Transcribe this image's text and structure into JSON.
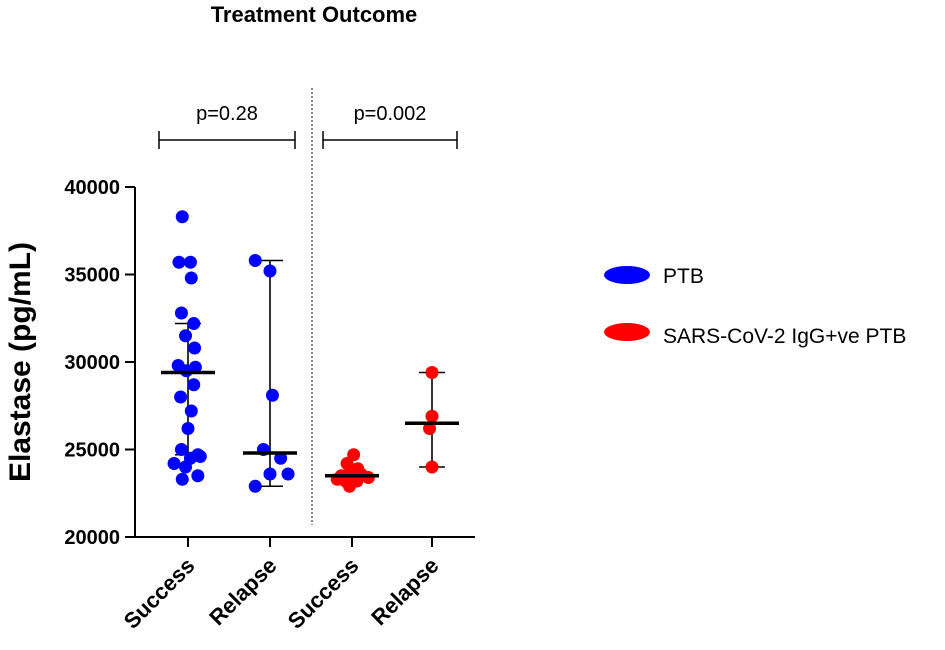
{
  "chart_data": {
    "type": "scatter",
    "title": "Treatment Outcome",
    "ylabel": "Elastase (pg/mL)",
    "xlabel": "",
    "ylim": [
      20000,
      40000
    ],
    "yticks": [
      20000,
      25000,
      30000,
      35000,
      40000
    ],
    "ytick_labels": [
      "20000",
      "25000",
      "30000",
      "35000",
      "40000"
    ],
    "categories": [
      "Success",
      "Relapse",
      "Success",
      "Relapse"
    ],
    "legend": [
      {
        "label": "PTB",
        "color": "#0000ff"
      },
      {
        "label": "SARS-CoV-2 IgG+ve PTB",
        "color": "#ff0000"
      }
    ],
    "legend_position": "right",
    "groups": [
      {
        "category": "Success",
        "series": "PTB",
        "color": "#0000ff",
        "median": 29400,
        "q1": 24700,
        "q3": 32200,
        "points": [
          {
            "x": -0.07,
            "y": 38300
          },
          {
            "x": -0.11,
            "y": 35700
          },
          {
            "x": 0.03,
            "y": 35700
          },
          {
            "x": 0.04,
            "y": 34800
          },
          {
            "x": -0.08,
            "y": 32800
          },
          {
            "x": 0.07,
            "y": 32200
          },
          {
            "x": -0.03,
            "y": 31500
          },
          {
            "x": 0.08,
            "y": 30800
          },
          {
            "x": -0.12,
            "y": 29800
          },
          {
            "x": 0.09,
            "y": 29700
          },
          {
            "x": -0.02,
            "y": 29500
          },
          {
            "x": 0.07,
            "y": 28700
          },
          {
            "x": -0.09,
            "y": 28000
          },
          {
            "x": 0.04,
            "y": 27200
          },
          {
            "x": 0.0,
            "y": 26200
          },
          {
            "x": -0.08,
            "y": 25000
          },
          {
            "x": 0.12,
            "y": 24700
          },
          {
            "x": 0.03,
            "y": 24500
          },
          {
            "x": -0.17,
            "y": 24200
          },
          {
            "x": -0.03,
            "y": 24000
          },
          {
            "x": 0.15,
            "y": 24600
          },
          {
            "x": -0.07,
            "y": 23300
          },
          {
            "x": 0.12,
            "y": 23500
          }
        ]
      },
      {
        "category": "Relapse",
        "series": "PTB",
        "color": "#0000ff",
        "median": 24800,
        "q1": 22900,
        "q3": 35800,
        "points": [
          {
            "x": -0.18,
            "y": 35800
          },
          {
            "x": 0.0,
            "y": 35200
          },
          {
            "x": 0.03,
            "y": 28100
          },
          {
            "x": -0.08,
            "y": 25000
          },
          {
            "x": -0.18,
            "y": 22900
          },
          {
            "x": 0.0,
            "y": 23600
          },
          {
            "x": 0.22,
            "y": 23600
          },
          {
            "x": 0.13,
            "y": 24500
          }
        ]
      },
      {
        "category": "Success",
        "series": "SARS-CoV-2 IgG+ve PTB",
        "color": "#ff0000",
        "median": 23500,
        "q1": 23300,
        "q3": 23800,
        "points": [
          {
            "x": 0.02,
            "y": 24700
          },
          {
            "x": -0.06,
            "y": 24200
          },
          {
            "x": 0.07,
            "y": 23900
          },
          {
            "x": -0.13,
            "y": 23500
          },
          {
            "x": -0.02,
            "y": 23600
          },
          {
            "x": 0.11,
            "y": 23600
          },
          {
            "x": -0.08,
            "y": 23200
          },
          {
            "x": 0.06,
            "y": 23200
          },
          {
            "x": 0.2,
            "y": 23400
          },
          {
            "x": -0.03,
            "y": 22900
          },
          {
            "x": -0.18,
            "y": 23300
          }
        ]
      },
      {
        "category": "Relapse",
        "series": "SARS-CoV-2 IgG+ve PTB",
        "color": "#ff0000",
        "median": 26500,
        "q1": 24000,
        "q3": 29400,
        "points": [
          {
            "x": 0.0,
            "y": 29400
          },
          {
            "x": 0.0,
            "y": 26900
          },
          {
            "x": -0.03,
            "y": 26200
          },
          {
            "x": 0.0,
            "y": 24000
          }
        ]
      }
    ],
    "annotations": [
      {
        "text": "p=0.28",
        "from_group": 0,
        "to_group": 1
      },
      {
        "text": "p=0.002",
        "from_group": 2,
        "to_group": 3
      }
    ]
  }
}
